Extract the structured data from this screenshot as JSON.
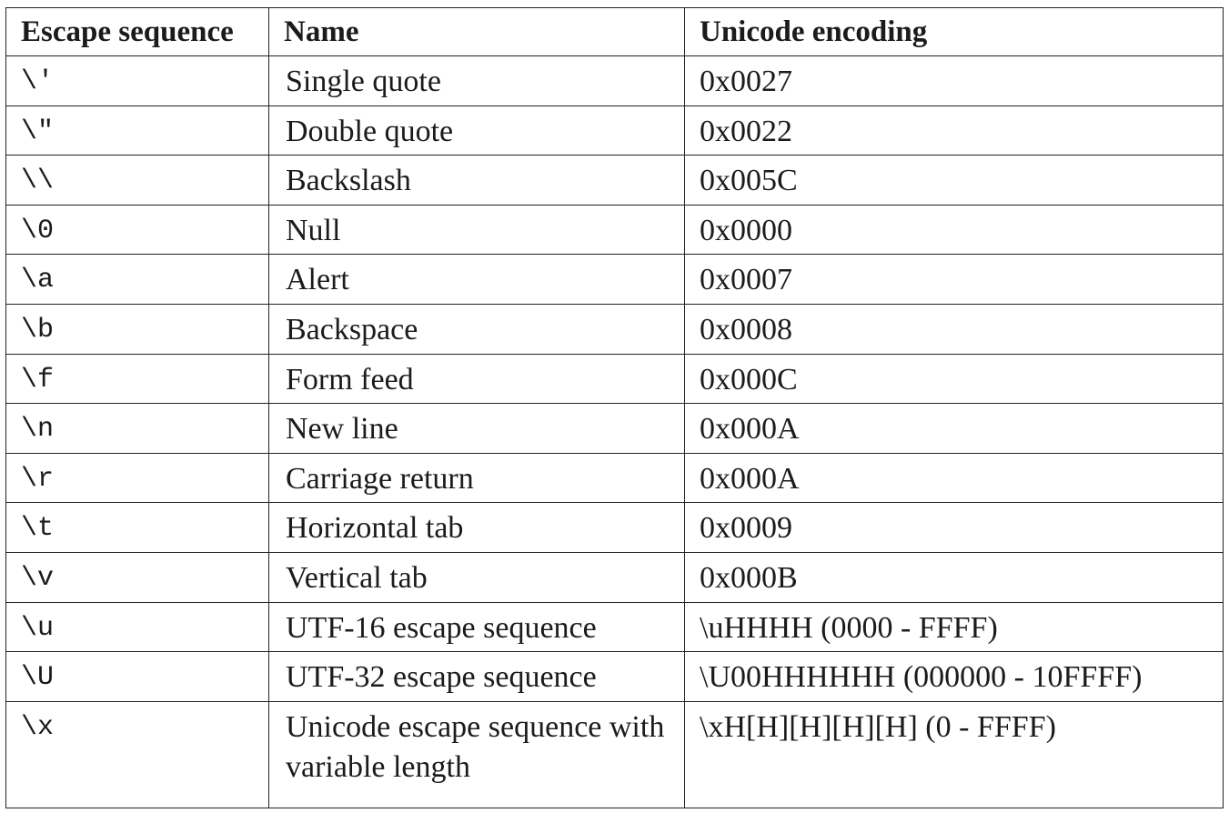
{
  "table": {
    "headers": [
      "Escape sequence",
      "Name",
      "Unicode encoding"
    ],
    "rows": [
      {
        "seq": "\\′",
        "name": "Single quote",
        "enc": "0x0027"
      },
      {
        "seq": "\\″",
        "name": "Double quote",
        "enc": "0x0022"
      },
      {
        "seq": "\\\\",
        "name": "Backslash",
        "enc": "0x005C"
      },
      {
        "seq": "\\0",
        "name": "Null",
        "enc": "0x0000"
      },
      {
        "seq": "\\a",
        "name": "Alert",
        "enc": "0x0007"
      },
      {
        "seq": "\\b",
        "name": "Backspace",
        "enc": "0x0008"
      },
      {
        "seq": "\\f",
        "name": "Form feed",
        "enc": "0x000C"
      },
      {
        "seq": "\\n",
        "name": "New line",
        "enc": "0x000A"
      },
      {
        "seq": "\\r",
        "name": "Carriage return",
        "enc": "0x000A"
      },
      {
        "seq": "\\t",
        "name": "Horizontal tab",
        "enc": "0x0009"
      },
      {
        "seq": "\\v",
        "name": "Vertical tab",
        "enc": "0x000B"
      },
      {
        "seq": "\\u",
        "name": "UTF-16 escape sequence",
        "enc": "\\uHHHH (0000 - FFFF)"
      },
      {
        "seq": "\\U",
        "name": "UTF-32 escape sequence",
        "enc": "\\U00HHHHHH (000000 - 10FFFF)"
      },
      {
        "seq": "\\x",
        "name": "Unicode escape sequence with variable length",
        "enc": "\\xH[H][H][H][H] (0 - FFFF)"
      }
    ]
  }
}
